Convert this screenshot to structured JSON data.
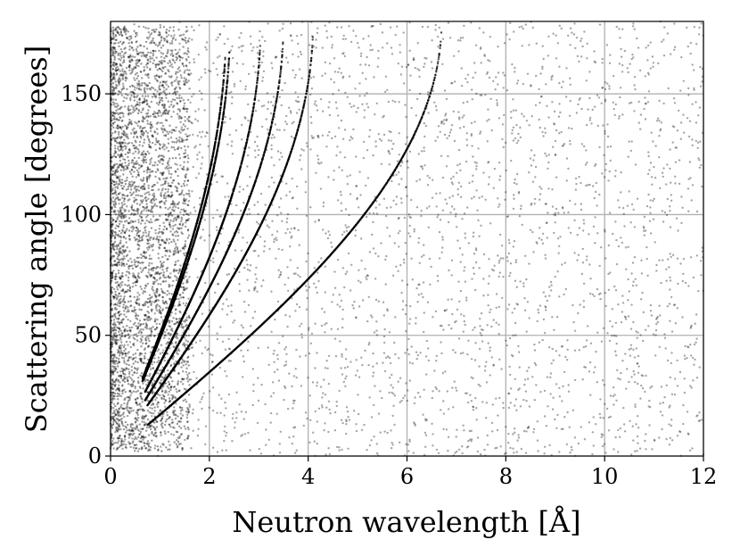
{
  "chart_data": {
    "type": "scatter",
    "title": "",
    "xlabel": "Neutron wavelength [Å]",
    "ylabel": "Scattering angle [degrees]",
    "xlim": [
      0,
      12
    ],
    "ylim": [
      0,
      180
    ],
    "xticks": [
      0,
      2,
      4,
      6,
      8,
      10,
      12
    ],
    "yticks": [
      0,
      50,
      100,
      150
    ],
    "grid": true,
    "legend": "none",
    "marker_color": "#000000",
    "series": [
      {
        "role": "diffraction-lines",
        "description_values": "Bragg curves: angle = 2*asin(lambda / (2*d)); d-spacings in Å",
        "d_spacings": [
          3.35,
          2.05,
          1.75,
          1.52,
          1.21,
          1.17
        ],
        "lambda_start": [
          0.75,
          0.75,
          0.7,
          0.7,
          0.65,
          0.65
        ],
        "angle_max": [
          178,
          176,
          172,
          170,
          168,
          165
        ]
      },
      {
        "role": "background",
        "x_range": [
          0,
          12
        ],
        "y_range": [
          0,
          180
        ],
        "dense_region_x": [
          0,
          1.6
        ]
      }
    ]
  }
}
